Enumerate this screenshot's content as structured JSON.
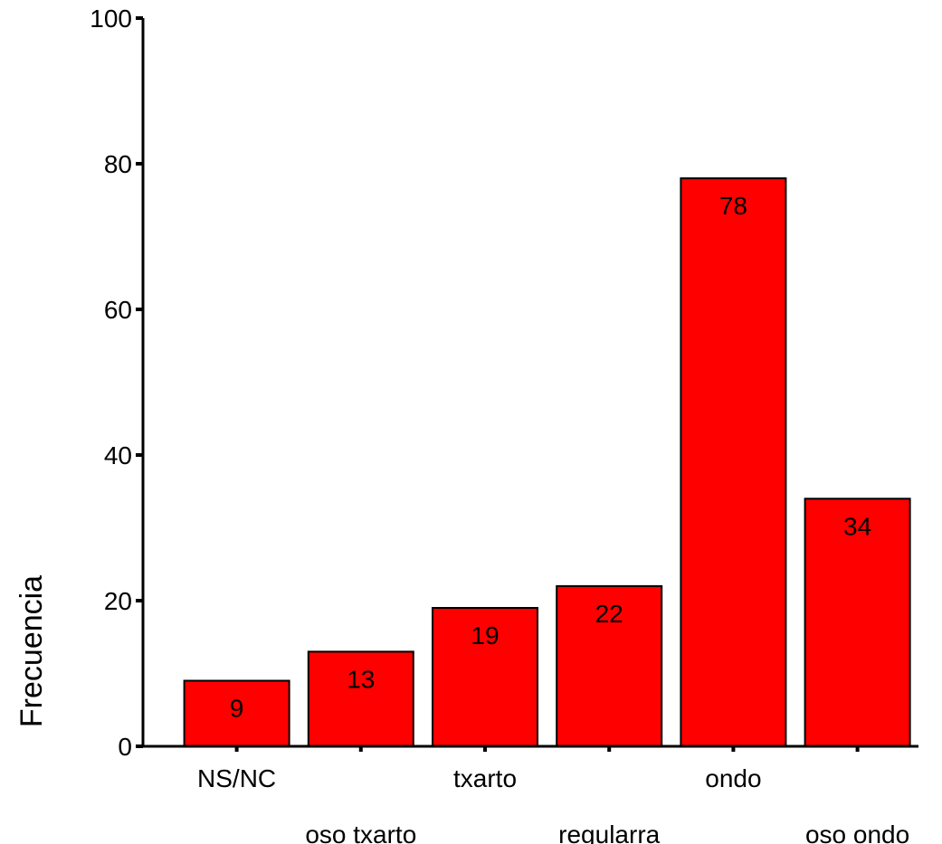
{
  "chart_data": {
    "type": "bar",
    "categories": [
      "NS/NC",
      "oso txarto",
      "txarto",
      "regularra",
      "ondo",
      "oso ondo"
    ],
    "values": [
      9,
      13,
      19,
      22,
      78,
      34
    ],
    "data_labels": [
      "9",
      "13",
      "19",
      "22",
      "78",
      "34"
    ],
    "title": "",
    "xlabel": "",
    "ylabel": "Frecuencia",
    "ylim": [
      0,
      100
    ],
    "yticks": [
      0,
      20,
      40,
      60,
      80,
      100
    ],
    "ytick_labels": [
      "0",
      "20",
      "40",
      "60",
      "80",
      "100"
    ],
    "grid": false,
    "legend": "none",
    "bar_color": "#ff0000",
    "bar_edge_color": "#000000"
  }
}
